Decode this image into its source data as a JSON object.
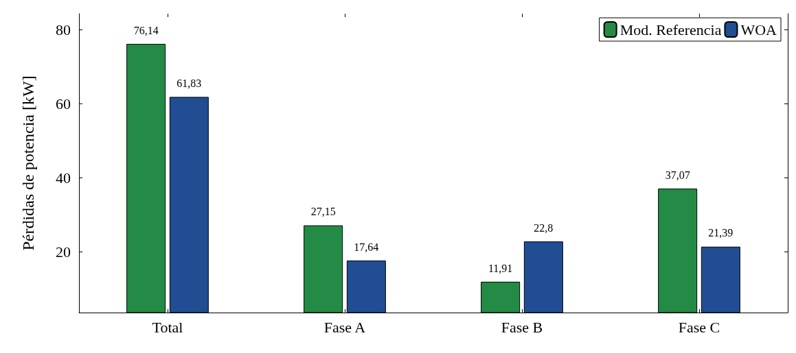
{
  "chart_data": {
    "type": "bar",
    "ylabel": "Pérdidas de potencia [kW]",
    "categories": [
      "Total",
      "Fase A",
      "Fase B",
      "Fase C"
    ],
    "series": [
      {
        "name": "Mod. Referencia",
        "color": "#238b45",
        "values": [
          76.14,
          27.15,
          11.91,
          37.07
        ],
        "value_labels": [
          "76,14",
          "27,15",
          "11,91",
          "37,07"
        ]
      },
      {
        "name": "WOA",
        "color": "#214d92",
        "values": [
          61.83,
          17.64,
          22.8,
          21.39
        ],
        "value_labels": [
          "61,83",
          "17,64",
          "22,8",
          "21,39"
        ]
      }
    ],
    "ylim": [
      3.6,
      84.3
    ],
    "yticks": [
      20,
      40,
      60,
      80
    ],
    "grid": false,
    "legend": "top right"
  }
}
